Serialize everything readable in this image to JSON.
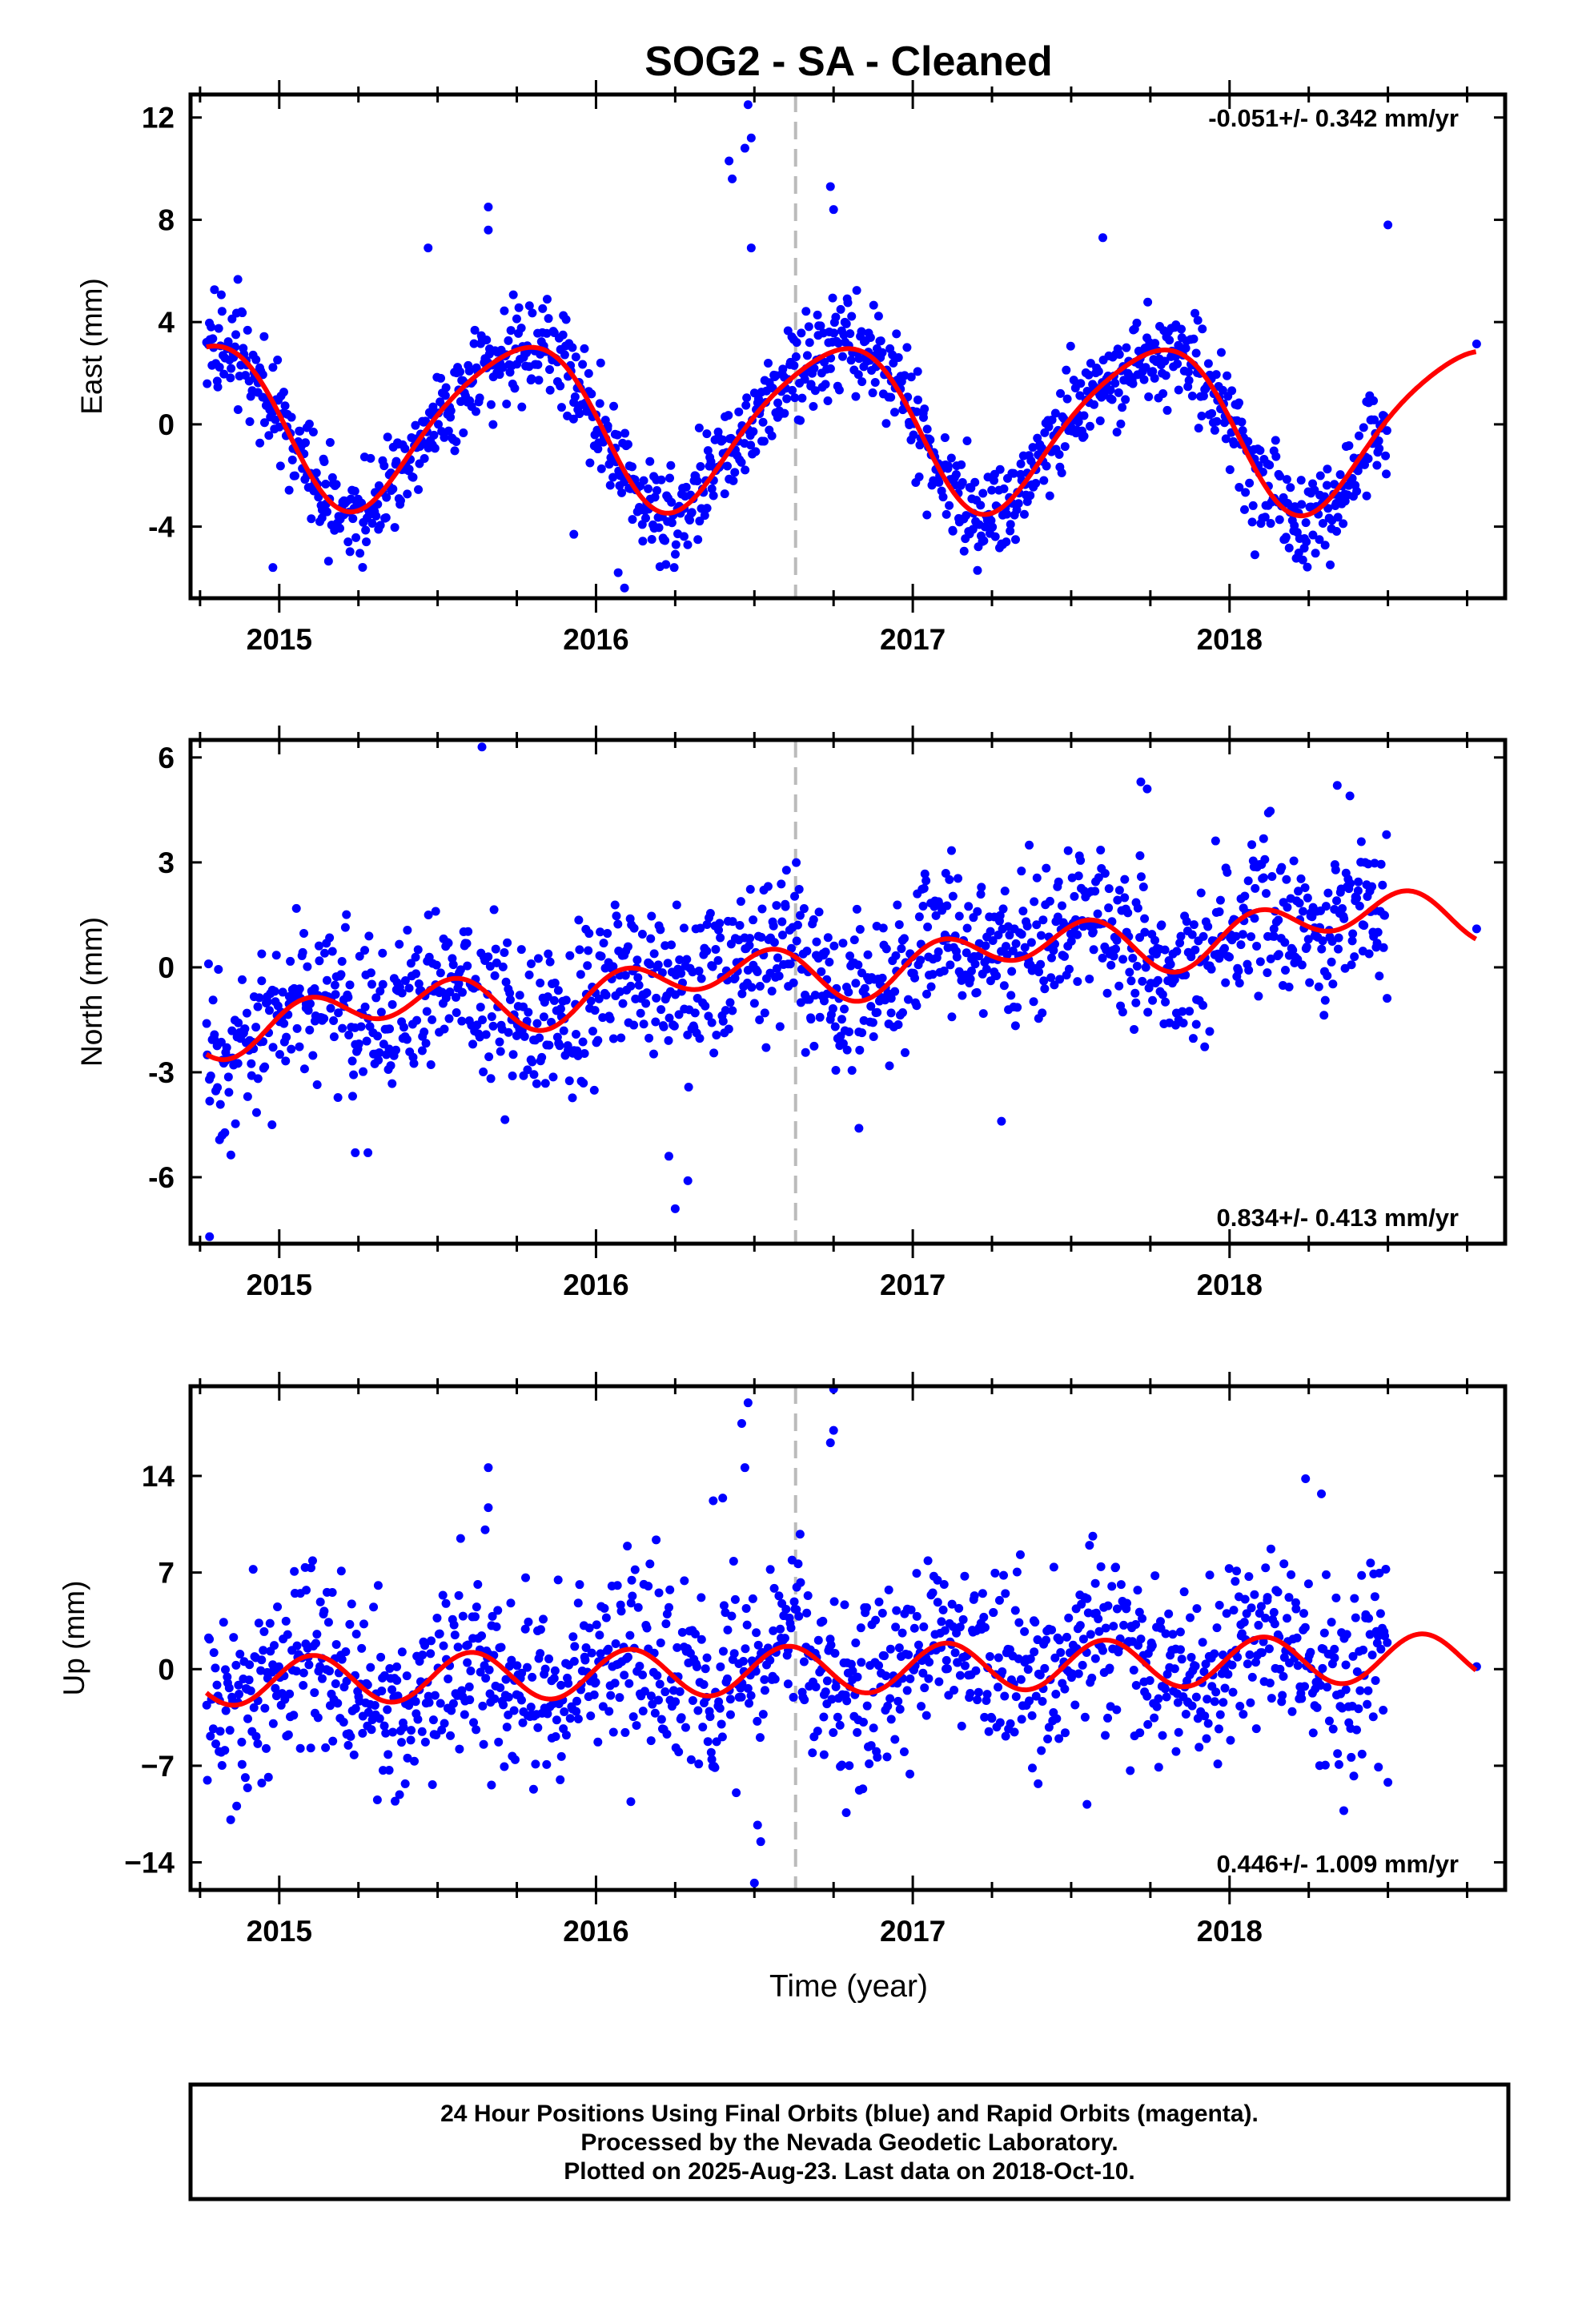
{
  "chart_data": {
    "type": "scatter",
    "title": "SOG2  - SA - Cleaned",
    "xlabel": "Time (year)",
    "xlim": [
      2014.72,
      2018.87
    ],
    "xticks": [
      "2015",
      "2016",
      "2017",
      "2018"
    ],
    "antenna_change_year": 2016.63,
    "colors": {
      "points": "#0000ff",
      "fit": "#ff0000",
      "marker_line": "#bbbbbb"
    },
    "series_legend": [
      "Final Orbits (blue)",
      "Rapid Orbits (magenta)"
    ],
    "panels": [
      {
        "ylabel": "East (mm)",
        "ylim": [
          -6.8,
          12.9
        ],
        "yticks": [
          "12",
          "8",
          "4",
          "0",
          "-4"
        ],
        "yticks_values": [
          12,
          8,
          4,
          0,
          -4
        ],
        "rate": "-0.051+/- 0.342 mm/yr",
        "rate_position": "top-right",
        "fit_model": {
          "a": 0.0,
          "trend": -0.051,
          "sin1": -3.15,
          "cos1": 0.0,
          "sin2": -0.35,
          "cos2": 0.3
        },
        "points": {
          "count": 1250,
          "noise": 1.0,
          "outliers": [
            [
              2016.48,
              12.5
            ],
            [
              2016.49,
              11.2
            ],
            [
              2016.47,
              10.8
            ],
            [
              2016.42,
              10.3
            ],
            [
              2016.43,
              9.6
            ],
            [
              2016.74,
              9.3
            ],
            [
              2016.75,
              8.4
            ],
            [
              2015.66,
              8.5
            ],
            [
              2015.66,
              7.6
            ],
            [
              2015.47,
              6.9
            ],
            [
              2017.6,
              7.3
            ],
            [
              2016.49,
              6.9
            ],
            [
              2018.5,
              7.8
            ],
            [
              2016.07,
              -5.8
            ],
            [
              2016.09,
              -6.4
            ],
            [
              2014.98,
              -5.6
            ],
            [
              2018.08,
              -5.1
            ],
            [
              2015.93,
              -4.3
            ]
          ]
        }
      },
      {
        "ylabel": "North (mm)",
        "ylim": [
          -7.9,
          6.5
        ],
        "yticks": [
          "6",
          "3",
          "0",
          "-3",
          "-6"
        ],
        "yticks_values": [
          6,
          3,
          0,
          -3,
          -6
        ],
        "rate": "0.834+/- 0.413 mm/yr",
        "rate_position": "bottom-right",
        "fit_model": {
          "a": 0.0,
          "trend": 0.834,
          "sin1": 0.3,
          "cos1": -0.25,
          "sin2": 0.5,
          "cos2": 0.35
        },
        "points": {
          "count": 1250,
          "noise": 1.1,
          "outliers": [
            [
              2015.64,
              6.3
            ],
            [
              2014.78,
              -7.7
            ],
            [
              2016.25,
              -6.9
            ],
            [
              2016.29,
              -6.1
            ],
            [
              2016.23,
              -5.4
            ],
            [
              2015.24,
              -5.3
            ],
            [
              2015.28,
              -5.3
            ],
            [
              2014.82,
              -4.8
            ],
            [
              2017.72,
              5.3
            ],
            [
              2017.74,
              5.1
            ],
            [
              2018.34,
              5.2
            ],
            [
              2018.38,
              4.9
            ],
            [
              2016.83,
              -4.6
            ],
            [
              2017.28,
              -4.4
            ]
          ]
        }
      },
      {
        "ylabel": "Up (mm)",
        "ylim": [
          -16.0,
          20.5
        ],
        "yticks": [
          "14",
          "7",
          "0",
          "−7",
          "−14"
        ],
        "yticks_values": [
          14,
          7,
          0,
          -7,
          -14
        ],
        "rate": "0.446+/- 1.009 mm/yr",
        "rate_position": "bottom-right",
        "fit_model": {
          "a": 0.0,
          "trend": 0.446,
          "sin1": 0.0,
          "cos1": 0.0,
          "sin2": 1.7,
          "cos2": 0.4
        },
        "points": {
          "count": 1250,
          "noise": 3.2,
          "outliers": [
            [
              2016.48,
              19.3
            ],
            [
              2016.46,
              17.8
            ],
            [
              2016.75,
              20.3
            ],
            [
              2016.75,
              17.3
            ],
            [
              2016.74,
              16.4
            ],
            [
              2016.47,
              14.6
            ],
            [
              2015.66,
              14.6
            ],
            [
              2015.66,
              11.7
            ],
            [
              2015.65,
              10.1
            ],
            [
              2016.4,
              12.4
            ],
            [
              2016.37,
              12.2
            ],
            [
              2018.24,
              13.8
            ],
            [
              2018.29,
              12.7
            ],
            [
              2016.5,
              -15.5
            ],
            [
              2016.52,
              -12.5
            ],
            [
              2016.51,
              -11.3
            ],
            [
              2014.9,
              -8.6
            ],
            [
              2015.67,
              -8.4
            ],
            [
              2016.72,
              -6.2
            ],
            [
              2017.55,
              -9.8
            ],
            [
              2018.5,
              -8.2
            ],
            [
              2018.47,
              -7.1
            ],
            [
              2016.11,
              -9.6
            ],
            [
              2016.79,
              -10.4
            ]
          ]
        }
      }
    ]
  },
  "footer": {
    "line1": "24 Hour Positions Using Final Orbits (blue) and Rapid Orbits (magenta).",
    "line2": "Processed by the Nevada Geodetic Laboratory.",
    "line3": "Plotted on 2025-Aug-23. Last data on 2018-Oct-10."
  }
}
